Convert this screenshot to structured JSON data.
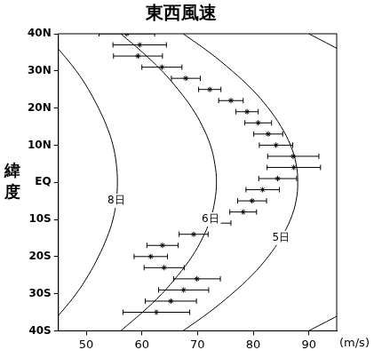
{
  "chart_data": {
    "type": "scatter",
    "title": "東西風速",
    "x_label": "(m/s)",
    "y_label": "緯度",
    "xlim": [
      45,
      95
    ],
    "xticks": [
      50,
      60,
      70,
      80,
      90
    ],
    "ylim": [
      -40,
      40
    ],
    "yticks": [
      {
        "value": -40,
        "label": "40S"
      },
      {
        "value": -30,
        "label": "30S"
      },
      {
        "value": -20,
        "label": "20S"
      },
      {
        "value": -10,
        "label": "10S"
      },
      {
        "value": 0,
        "label": "EQ"
      },
      {
        "value": 10,
        "label": "10N"
      },
      {
        "value": 20,
        "label": "20N"
      },
      {
        "value": 30,
        "label": "30N"
      },
      {
        "value": 40,
        "label": "40N"
      }
    ],
    "grid": false,
    "points": {
      "color": "#000000",
      "marker": "star",
      "x": [
        57.3,
        59.6,
        59.3,
        63.6,
        67.9,
        72.2,
        76.0,
        78.9,
        80.9,
        82.7,
        84.1,
        87.2,
        87.3,
        84.4,
        81.7,
        79.8,
        78.2,
        73.6,
        69.3,
        63.7,
        61.6,
        64.0,
        69.9,
        67.5,
        65.2,
        62.6
      ],
      "y": [
        40,
        37,
        34,
        31,
        28,
        25,
        22,
        19,
        16,
        13,
        10,
        7,
        4,
        1,
        -2,
        -5,
        -8,
        -11,
        -14,
        -17,
        -20,
        -23,
        -26,
        -29,
        -32,
        -35
      ],
      "x_error": [
        5.0,
        4.8,
        4.4,
        3.6,
        2.6,
        2.0,
        2.2,
        2.0,
        2.4,
        2.6,
        3.0,
        4.6,
        4.8,
        3.4,
        3.0,
        2.6,
        2.4,
        2.4,
        2.6,
        2.8,
        3.0,
        3.6,
        4.2,
        4.5,
        4.6,
        6.0
      ]
    },
    "series": [
      {
        "name": "8日",
        "color": "#000000",
        "line_style": "solid",
        "y": [
          -40,
          -35,
          -30,
          -25,
          -20,
          -15,
          -10,
          -5,
          0,
          5,
          10,
          15,
          20,
          25,
          30,
          35,
          40
        ],
        "x": [
          42.6,
          45.5,
          48.2,
          50.4,
          52.2,
          53.7,
          54.8,
          55.4,
          55.6,
          55.4,
          54.8,
          53.7,
          52.2,
          50.4,
          48.2,
          45.5,
          42.6
        ]
      },
      {
        "name": "6日",
        "color": "#000000",
        "line_style": "solid",
        "y": [
          -40,
          -35,
          -30,
          -25,
          -20,
          -15,
          -10,
          -5,
          0,
          5,
          10,
          15,
          20,
          25,
          30,
          35,
          40
        ],
        "x": [
          56.2,
          60.1,
          63.6,
          66.5,
          69.0,
          70.9,
          72.3,
          73.1,
          73.4,
          73.1,
          72.3,
          70.9,
          69.0,
          66.5,
          63.6,
          60.1,
          56.2
        ]
      },
      {
        "name": "5日",
        "color": "#000000",
        "line_style": "solid",
        "y": [
          -40,
          -35,
          -30,
          -25,
          -20,
          -15,
          -10,
          -5,
          0,
          5,
          10,
          15,
          20,
          25,
          30,
          35,
          40
        ],
        "x": [
          67.4,
          72.1,
          76.2,
          79.8,
          82.7,
          85.0,
          86.7,
          87.7,
          88.0,
          87.7,
          86.7,
          85.0,
          82.7,
          79.8,
          76.2,
          72.1,
          67.4
        ]
      },
      {
        "color": "#000000",
        "line_style": "solid",
        "y": [
          -40,
          -35,
          -30,
          -25,
          -20,
          -15,
          -10,
          -5,
          0,
          5,
          10,
          15,
          20,
          25,
          30,
          35,
          40
        ],
        "x": [
          90.0,
          96.3,
          101.8,
          106.5,
          110.4,
          113.5,
          115.7,
          117.1,
          117.5,
          117.1,
          115.7,
          113.5,
          110.4,
          106.5,
          101.8,
          96.3,
          90.0
        ]
      }
    ]
  }
}
